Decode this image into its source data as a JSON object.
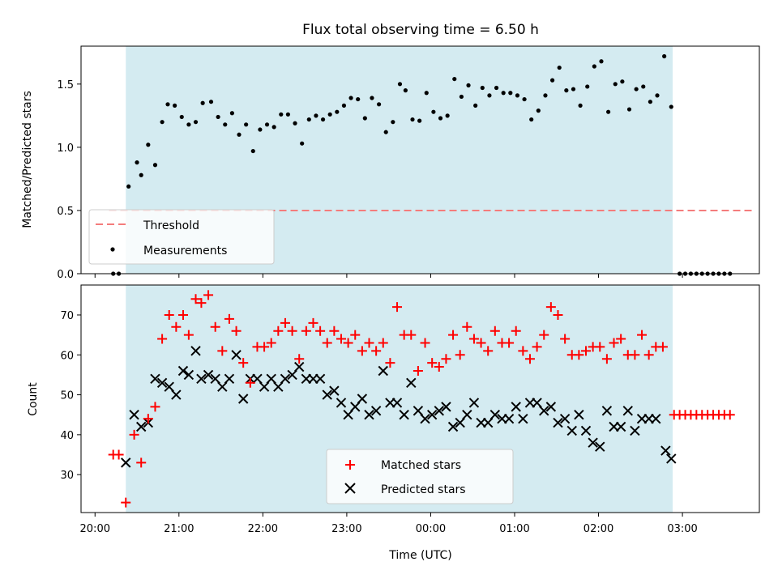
{
  "chart_data": {
    "title": "Flux total observing time = 6.50 h",
    "colors": {
      "shade": "#d4ebf1",
      "threshold": "#f47c7c",
      "matched": "#ff0000",
      "predicted": "#000000",
      "measurement": "#000000"
    },
    "shaded_interval": [
      "20:22",
      "02:53"
    ],
    "x_axis": {
      "label": "Time (UTC)",
      "ticks": [
        "20:00",
        "21:00",
        "22:00",
        "23:00",
        "00:00",
        "01:00",
        "02:00",
        "03:00"
      ],
      "range": [
        "19:50",
        "03:55"
      ]
    },
    "top_panel": {
      "type": "scatter",
      "ylabel": "Matched/Predicted stars",
      "ylim": [
        0,
        1.8
      ],
      "yticks": [
        "0.0",
        "0.5",
        "1.0",
        "1.5"
      ],
      "threshold": {
        "value": 0.5,
        "from": "20:10",
        "to": "03:50"
      },
      "legend": {
        "position": "lower-left",
        "entries": [
          "Threshold",
          "Measurements"
        ]
      },
      "measurements": [
        [
          "20:13",
          0.0
        ],
        [
          "20:17",
          0.0
        ],
        [
          "20:24",
          0.69
        ],
        [
          "20:30",
          0.88
        ],
        [
          "20:33",
          0.78
        ],
        [
          "20:38",
          1.02
        ],
        [
          "20:43",
          0.86
        ],
        [
          "20:48",
          1.2
        ],
        [
          "20:52",
          1.34
        ],
        [
          "20:57",
          1.33
        ],
        [
          "21:02",
          1.24
        ],
        [
          "21:07",
          1.18
        ],
        [
          "21:12",
          1.2
        ],
        [
          "21:17",
          1.35
        ],
        [
          "21:23",
          1.36
        ],
        [
          "21:28",
          1.24
        ],
        [
          "21:33",
          1.18
        ],
        [
          "21:38",
          1.27
        ],
        [
          "21:43",
          1.1
        ],
        [
          "21:48",
          1.18
        ],
        [
          "21:53",
          0.97
        ],
        [
          "21:58",
          1.14
        ],
        [
          "22:03",
          1.18
        ],
        [
          "22:08",
          1.16
        ],
        [
          "22:13",
          1.26
        ],
        [
          "22:18",
          1.26
        ],
        [
          "22:23",
          1.19
        ],
        [
          "22:28",
          1.03
        ],
        [
          "22:33",
          1.22
        ],
        [
          "22:38",
          1.25
        ],
        [
          "22:43",
          1.22
        ],
        [
          "22:48",
          1.26
        ],
        [
          "22:53",
          1.28
        ],
        [
          "22:58",
          1.33
        ],
        [
          "23:03",
          1.39
        ],
        [
          "23:08",
          1.38
        ],
        [
          "23:13",
          1.23
        ],
        [
          "23:18",
          1.39
        ],
        [
          "23:23",
          1.34
        ],
        [
          "23:28",
          1.12
        ],
        [
          "23:33",
          1.2
        ],
        [
          "23:38",
          1.5
        ],
        [
          "23:42",
          1.45
        ],
        [
          "23:47",
          1.22
        ],
        [
          "23:52",
          1.21
        ],
        [
          "23:57",
          1.43
        ],
        [
          "00:02",
          1.28
        ],
        [
          "00:07",
          1.23
        ],
        [
          "00:12",
          1.25
        ],
        [
          "00:17",
          1.54
        ],
        [
          "00:22",
          1.4
        ],
        [
          "00:27",
          1.49
        ],
        [
          "00:32",
          1.33
        ],
        [
          "00:37",
          1.47
        ],
        [
          "00:42",
          1.41
        ],
        [
          "00:47",
          1.47
        ],
        [
          "00:52",
          1.43
        ],
        [
          "00:57",
          1.43
        ],
        [
          "01:02",
          1.41
        ],
        [
          "01:07",
          1.38
        ],
        [
          "01:12",
          1.22
        ],
        [
          "01:17",
          1.29
        ],
        [
          "01:22",
          1.41
        ],
        [
          "01:27",
          1.53
        ],
        [
          "01:32",
          1.63
        ],
        [
          "01:37",
          1.45
        ],
        [
          "01:42",
          1.46
        ],
        [
          "01:47",
          1.33
        ],
        [
          "01:52",
          1.48
        ],
        [
          "01:57",
          1.64
        ],
        [
          "02:02",
          1.68
        ],
        [
          "02:07",
          1.28
        ],
        [
          "02:12",
          1.5
        ],
        [
          "02:17",
          1.52
        ],
        [
          "02:22",
          1.3
        ],
        [
          "02:27",
          1.46
        ],
        [
          "02:32",
          1.48
        ],
        [
          "02:37",
          1.36
        ],
        [
          "02:42",
          1.41
        ],
        [
          "02:47",
          1.72
        ],
        [
          "02:52",
          1.32
        ],
        [
          "02:58",
          0.0
        ],
        [
          "03:02",
          0.0
        ],
        [
          "03:06",
          0.0
        ],
        [
          "03:10",
          0.0
        ],
        [
          "03:14",
          0.0
        ],
        [
          "03:18",
          0.0
        ],
        [
          "03:22",
          0.0
        ],
        [
          "03:26",
          0.0
        ],
        [
          "03:30",
          0.0
        ],
        [
          "03:34",
          0.0
        ]
      ]
    },
    "bottom_panel": {
      "type": "scatter",
      "ylabel": "Count",
      "ylim": [
        20.5,
        77.5
      ],
      "yticks": [
        "30",
        "40",
        "50",
        "60",
        "70"
      ],
      "legend": {
        "position": "lower-center",
        "entries": [
          "Matched stars",
          "Predicted stars"
        ]
      },
      "matched": [
        [
          "20:13",
          35
        ],
        [
          "20:17",
          35
        ],
        [
          "20:22",
          23
        ],
        [
          "20:28",
          40
        ],
        [
          "20:33",
          33
        ],
        [
          "20:38",
          44
        ],
        [
          "20:43",
          47
        ],
        [
          "20:48",
          64
        ],
        [
          "20:53",
          70
        ],
        [
          "20:58",
          67
        ],
        [
          "21:03",
          70
        ],
        [
          "21:07",
          65
        ],
        [
          "21:12",
          74
        ],
        [
          "21:16",
          73
        ],
        [
          "21:21",
          75
        ],
        [
          "21:26",
          67
        ],
        [
          "21:31",
          61
        ],
        [
          "21:36",
          69
        ],
        [
          "21:41",
          66
        ],
        [
          "21:46",
          58
        ],
        [
          "21:51",
          53
        ],
        [
          "21:56",
          62
        ],
        [
          "22:01",
          62
        ],
        [
          "22:06",
          63
        ],
        [
          "22:11",
          66
        ],
        [
          "22:16",
          68
        ],
        [
          "22:21",
          66
        ],
        [
          "22:26",
          59
        ],
        [
          "22:31",
          66
        ],
        [
          "22:36",
          68
        ],
        [
          "22:41",
          66
        ],
        [
          "22:46",
          63
        ],
        [
          "22:51",
          66
        ],
        [
          "22:56",
          64
        ],
        [
          "23:01",
          63
        ],
        [
          "23:06",
          65
        ],
        [
          "23:11",
          61
        ],
        [
          "23:16",
          63
        ],
        [
          "23:21",
          61
        ],
        [
          "23:26",
          63
        ],
        [
          "23:31",
          58
        ],
        [
          "23:36",
          72
        ],
        [
          "23:41",
          65
        ],
        [
          "23:46",
          65
        ],
        [
          "23:51",
          56
        ],
        [
          "23:56",
          63
        ],
        [
          "00:01",
          58
        ],
        [
          "00:06",
          57
        ],
        [
          "00:11",
          59
        ],
        [
          "00:16",
          65
        ],
        [
          "00:21",
          60
        ],
        [
          "00:26",
          67
        ],
        [
          "00:31",
          64
        ],
        [
          "00:36",
          63
        ],
        [
          "00:41",
          61
        ],
        [
          "00:46",
          66
        ],
        [
          "00:51",
          63
        ],
        [
          "00:56",
          63
        ],
        [
          "01:01",
          66
        ],
        [
          "01:06",
          61
        ],
        [
          "01:11",
          59
        ],
        [
          "01:16",
          62
        ],
        [
          "01:21",
          65
        ],
        [
          "01:26",
          72
        ],
        [
          "01:31",
          70
        ],
        [
          "01:36",
          64
        ],
        [
          "01:41",
          60
        ],
        [
          "01:46",
          60
        ],
        [
          "01:51",
          61
        ],
        [
          "01:56",
          62
        ],
        [
          "02:01",
          62
        ],
        [
          "02:06",
          59
        ],
        [
          "02:11",
          63
        ],
        [
          "02:16",
          64
        ],
        [
          "02:21",
          60
        ],
        [
          "02:26",
          60
        ],
        [
          "02:31",
          65
        ],
        [
          "02:36",
          60
        ],
        [
          "02:41",
          62
        ],
        [
          "02:46",
          62
        ],
        [
          "02:54",
          45
        ],
        [
          "02:58",
          45
        ],
        [
          "03:02",
          45
        ],
        [
          "03:06",
          45
        ],
        [
          "03:10",
          45
        ],
        [
          "03:14",
          45
        ],
        [
          "03:18",
          45
        ],
        [
          "03:22",
          45
        ],
        [
          "03:26",
          45
        ],
        [
          "03:30",
          45
        ],
        [
          "03:34",
          45
        ]
      ],
      "predicted": [
        [
          "20:22",
          33
        ],
        [
          "20:28",
          45
        ],
        [
          "20:33",
          42
        ],
        [
          "20:38",
          43
        ],
        [
          "20:43",
          54
        ],
        [
          "20:48",
          53
        ],
        [
          "20:53",
          52
        ],
        [
          "20:58",
          50
        ],
        [
          "21:03",
          56
        ],
        [
          "21:07",
          55
        ],
        [
          "21:12",
          61
        ],
        [
          "21:16",
          54
        ],
        [
          "21:21",
          55
        ],
        [
          "21:26",
          54
        ],
        [
          "21:31",
          52
        ],
        [
          "21:36",
          54
        ],
        [
          "21:41",
          60
        ],
        [
          "21:46",
          49
        ],
        [
          "21:51",
          54
        ],
        [
          "21:56",
          54
        ],
        [
          "22:01",
          52
        ],
        [
          "22:06",
          54
        ],
        [
          "22:11",
          52
        ],
        [
          "22:16",
          54
        ],
        [
          "22:21",
          55
        ],
        [
          "22:26",
          57
        ],
        [
          "22:31",
          54
        ],
        [
          "22:36",
          54
        ],
        [
          "22:41",
          54
        ],
        [
          "22:46",
          50
        ],
        [
          "22:51",
          51
        ],
        [
          "22:56",
          48
        ],
        [
          "23:01",
          45
        ],
        [
          "23:06",
          47
        ],
        [
          "23:11",
          49
        ],
        [
          "23:16",
          45
        ],
        [
          "23:21",
          46
        ],
        [
          "23:26",
          56
        ],
        [
          "23:31",
          48
        ],
        [
          "23:36",
          48
        ],
        [
          "23:41",
          45
        ],
        [
          "23:46",
          53
        ],
        [
          "23:51",
          46
        ],
        [
          "23:56",
          44
        ],
        [
          "00:01",
          45
        ],
        [
          "00:06",
          46
        ],
        [
          "00:11",
          47
        ],
        [
          "00:16",
          42
        ],
        [
          "00:21",
          43
        ],
        [
          "00:26",
          45
        ],
        [
          "00:31",
          48
        ],
        [
          "00:36",
          43
        ],
        [
          "00:41",
          43
        ],
        [
          "00:46",
          45
        ],
        [
          "00:51",
          44
        ],
        [
          "00:56",
          44
        ],
        [
          "01:01",
          47
        ],
        [
          "01:06",
          44
        ],
        [
          "01:11",
          48
        ],
        [
          "01:16",
          48
        ],
        [
          "01:21",
          46
        ],
        [
          "01:26",
          47
        ],
        [
          "01:31",
          43
        ],
        [
          "01:36",
          44
        ],
        [
          "01:41",
          41
        ],
        [
          "01:46",
          45
        ],
        [
          "01:51",
          41
        ],
        [
          "01:56",
          38
        ],
        [
          "02:01",
          37
        ],
        [
          "02:06",
          46
        ],
        [
          "02:11",
          42
        ],
        [
          "02:16",
          42
        ],
        [
          "02:21",
          46
        ],
        [
          "02:26",
          41
        ],
        [
          "02:31",
          44
        ],
        [
          "02:36",
          44
        ],
        [
          "02:41",
          44
        ],
        [
          "02:48",
          36
        ],
        [
          "02:52",
          34
        ]
      ]
    }
  }
}
